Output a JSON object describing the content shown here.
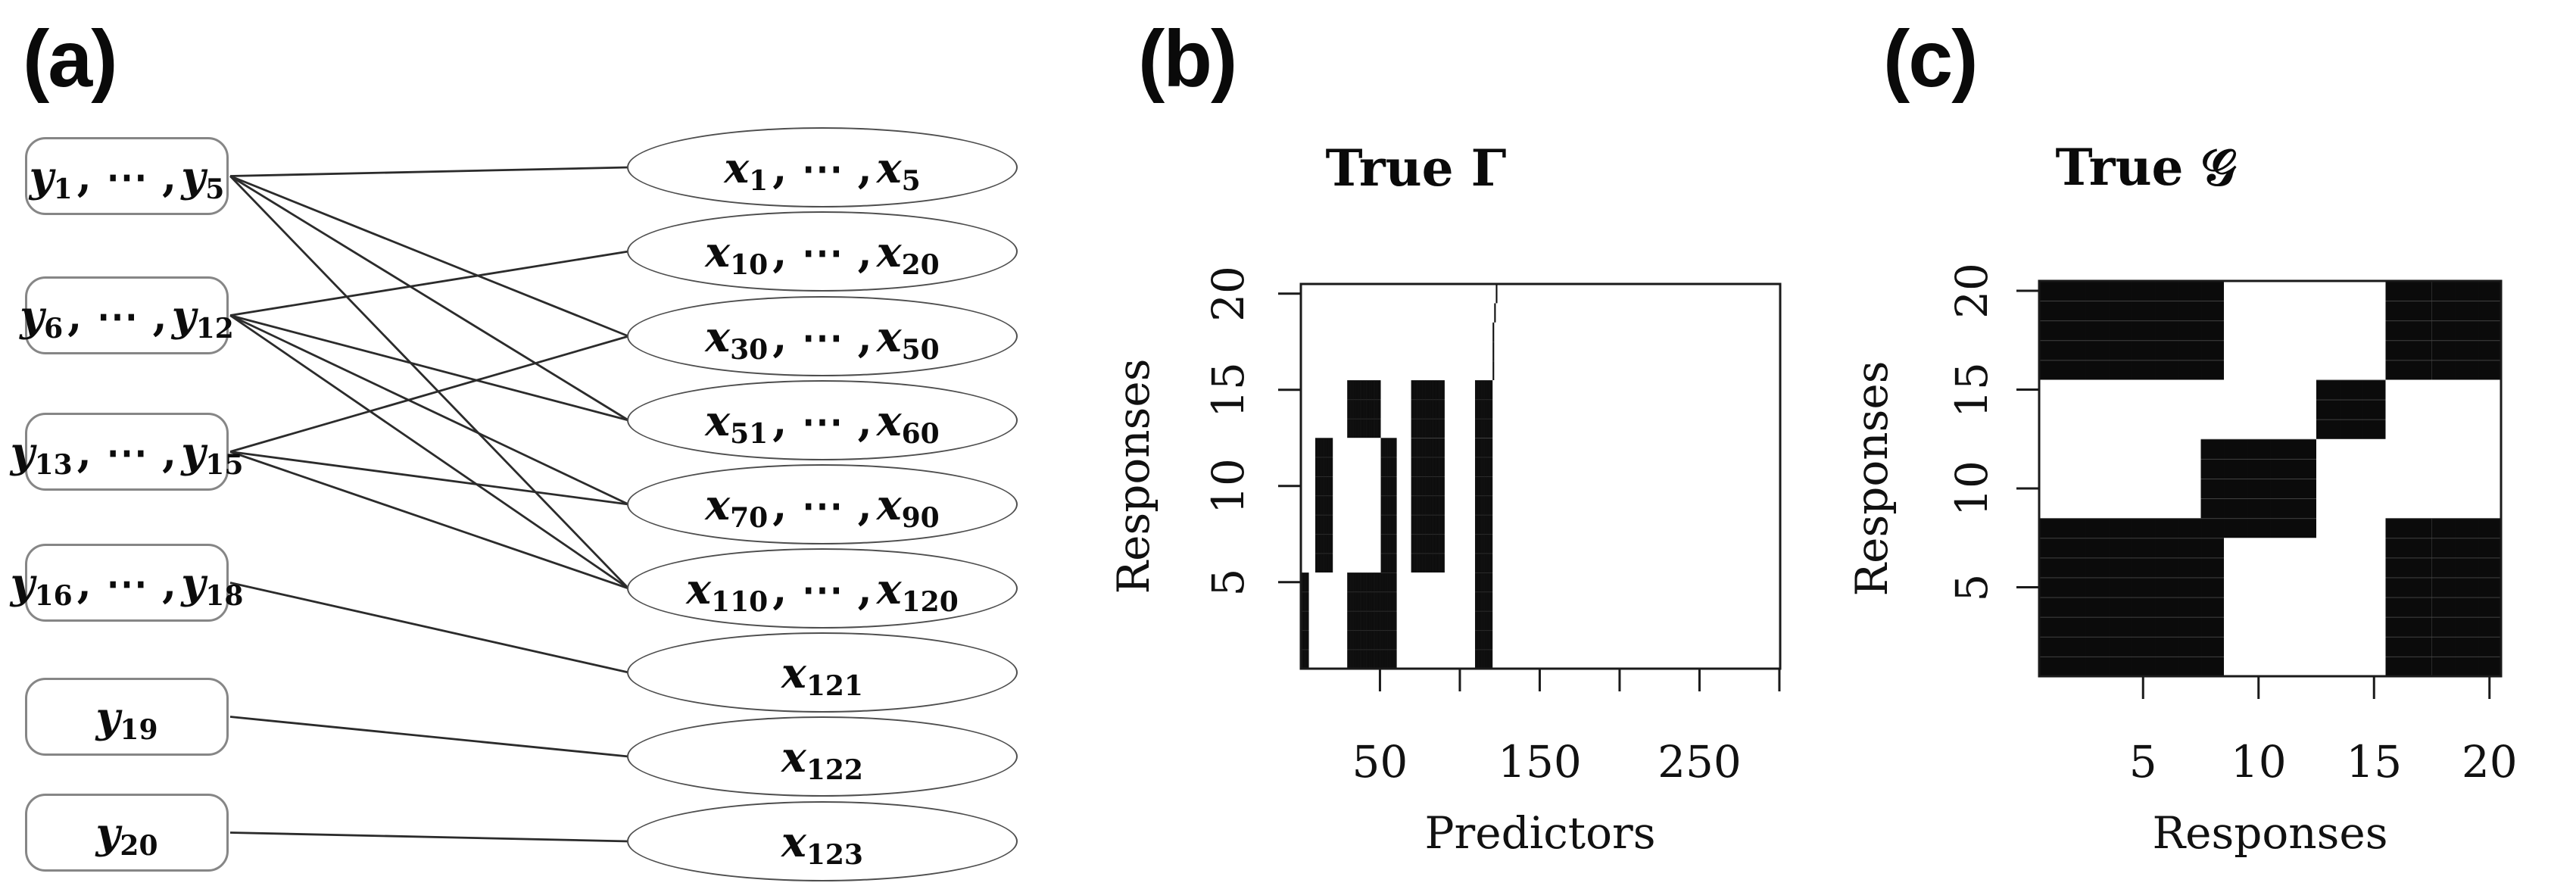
{
  "panels": {
    "a": {
      "label": "(a)",
      "left_nodes": [
        {
          "id": "y1-5",
          "segments": [
            {
              "t": "y",
              "sub": "1"
            },
            {
              "t": ", ⋯ ,"
            },
            {
              "t": "y",
              "sub": "5"
            }
          ]
        },
        {
          "id": "y6-12",
          "segments": [
            {
              "t": "y",
              "sub": "6"
            },
            {
              "t": ", ⋯ ,"
            },
            {
              "t": "y",
              "sub": "12"
            }
          ]
        },
        {
          "id": "y13-15",
          "segments": [
            {
              "t": "y",
              "sub": "13"
            },
            {
              "t": ", ⋯ ,"
            },
            {
              "t": "y",
              "sub": "15"
            }
          ]
        },
        {
          "id": "y16-18",
          "segments": [
            {
              "t": "y",
              "sub": "16"
            },
            {
              "t": ", ⋯ ,"
            },
            {
              "t": "y",
              "sub": "18"
            }
          ]
        },
        {
          "id": "y19",
          "segments": [
            {
              "t": "y",
              "sub": "19"
            }
          ]
        },
        {
          "id": "y20",
          "segments": [
            {
              "t": "y",
              "sub": "20"
            }
          ]
        }
      ],
      "right_nodes": [
        {
          "id": "x1-5",
          "segments": [
            {
              "t": "x",
              "sub": "1"
            },
            {
              "t": ", ⋯ ,"
            },
            {
              "t": "x",
              "sub": "5"
            }
          ]
        },
        {
          "id": "x10-20",
          "segments": [
            {
              "t": "x",
              "sub": "10"
            },
            {
              "t": ", ⋯ ,"
            },
            {
              "t": "x",
              "sub": "20"
            }
          ]
        },
        {
          "id": "x30-50",
          "segments": [
            {
              "t": "x",
              "sub": "30"
            },
            {
              "t": ", ⋯ ,"
            },
            {
              "t": "x",
              "sub": "50"
            }
          ]
        },
        {
          "id": "x51-60",
          "segments": [
            {
              "t": "x",
              "sub": "51"
            },
            {
              "t": ", ⋯ ,"
            },
            {
              "t": "x",
              "sub": "60"
            }
          ]
        },
        {
          "id": "x70-90",
          "segments": [
            {
              "t": "x",
              "sub": "70"
            },
            {
              "t": ", ⋯ ,"
            },
            {
              "t": "x",
              "sub": "90"
            }
          ]
        },
        {
          "id": "x110-120",
          "segments": [
            {
              "t": "x",
              "sub": "110"
            },
            {
              "t": ", ⋯ ,"
            },
            {
              "t": "x",
              "sub": "120"
            }
          ]
        },
        {
          "id": "x121",
          "segments": [
            {
              "t": "x",
              "sub": "121"
            }
          ]
        },
        {
          "id": "x122",
          "segments": [
            {
              "t": "x",
              "sub": "122"
            }
          ]
        },
        {
          "id": "x123",
          "segments": [
            {
              "t": "x",
              "sub": "123"
            }
          ]
        }
      ],
      "edges": [
        [
          "y1-5",
          "x1-5"
        ],
        [
          "y1-5",
          "x30-50"
        ],
        [
          "y1-5",
          "x51-60"
        ],
        [
          "y1-5",
          "x110-120"
        ],
        [
          "y6-12",
          "x10-20"
        ],
        [
          "y6-12",
          "x51-60"
        ],
        [
          "y6-12",
          "x70-90"
        ],
        [
          "y6-12",
          "x110-120"
        ],
        [
          "y13-15",
          "x30-50"
        ],
        [
          "y13-15",
          "x70-90"
        ],
        [
          "y13-15",
          "x110-120"
        ],
        [
          "y16-18",
          "x121"
        ],
        [
          "y19",
          "x122"
        ],
        [
          "y20",
          "x123"
        ]
      ]
    },
    "b": {
      "label": "(b)",
      "title": "True Γ",
      "xlabel": "Predictors",
      "ylabel": "Responses"
    },
    "c": {
      "label": "(c)",
      "title": "True 𝒢",
      "xlabel": "Responses",
      "ylabel": "Responses"
    }
  },
  "chart_data": [
    {
      "panel": "b",
      "type": "heatmap",
      "title": "True Γ",
      "xlabel": "Predictors",
      "ylabel": "Responses",
      "x_range": [
        1,
        300
      ],
      "y_range": [
        1,
        20
      ],
      "x_ticks": [
        50,
        100,
        150,
        200,
        250,
        300
      ],
      "x_tick_labels": [
        "50",
        "",
        "150",
        "",
        "250",
        ""
      ],
      "y_ticks": [
        5,
        10,
        15,
        20
      ],
      "y_tick_labels": [
        "5",
        "10",
        "15",
        "20"
      ],
      "cell_color": "#0b0b0b",
      "background": "#ffffff",
      "blocks": [
        {
          "cols": [
            1,
            5
          ],
          "rows": [
            1,
            5
          ]
        },
        {
          "cols": [
            30,
            60
          ],
          "rows": [
            1,
            5
          ]
        },
        {
          "cols": [
            110,
            120
          ],
          "rows": [
            1,
            5
          ]
        },
        {
          "cols": [
            10,
            20
          ],
          "rows": [
            6,
            12
          ]
        },
        {
          "cols": [
            51,
            60
          ],
          "rows": [
            6,
            12
          ]
        },
        {
          "cols": [
            70,
            90
          ],
          "rows": [
            6,
            12
          ]
        },
        {
          "cols": [
            110,
            120
          ],
          "rows": [
            6,
            12
          ]
        },
        {
          "cols": [
            30,
            50
          ],
          "rows": [
            13,
            15
          ]
        },
        {
          "cols": [
            70,
            90
          ],
          "rows": [
            13,
            15
          ]
        },
        {
          "cols": [
            110,
            120
          ],
          "rows": [
            13,
            15
          ]
        },
        {
          "cols": [
            121,
            121
          ],
          "rows": [
            16,
            18
          ]
        },
        {
          "cols": [
            122,
            122
          ],
          "rows": [
            19,
            19
          ]
        },
        {
          "cols": [
            123,
            123
          ],
          "rows": [
            20,
            20
          ]
        }
      ]
    },
    {
      "panel": "c",
      "type": "heatmap",
      "title": "True 𝒢",
      "xlabel": "Responses",
      "ylabel": "Responses",
      "x_range": [
        1,
        20
      ],
      "y_range": [
        1,
        20
      ],
      "x_ticks": [
        5,
        10,
        15,
        20
      ],
      "x_tick_labels": [
        "5",
        "10",
        "15",
        "20"
      ],
      "y_ticks": [
        5,
        10,
        15,
        20
      ],
      "y_tick_labels": [
        "5",
        "10",
        "15",
        "20"
      ],
      "cell_color": "#0b0b0b",
      "background": "#ffffff",
      "blocks": [
        {
          "cols": [
            1,
            8
          ],
          "rows": [
            16,
            20
          ]
        },
        {
          "cols": [
            16,
            20
          ],
          "rows": [
            16,
            20
          ]
        },
        {
          "cols": [
            13,
            15
          ],
          "rows": [
            13,
            15
          ]
        },
        {
          "cols": [
            8,
            12
          ],
          "rows": [
            8,
            12
          ]
        },
        {
          "cols": [
            1,
            8
          ],
          "rows": [
            1,
            8
          ]
        },
        {
          "cols": [
            16,
            20
          ],
          "rows": [
            1,
            8
          ]
        }
      ]
    }
  ]
}
